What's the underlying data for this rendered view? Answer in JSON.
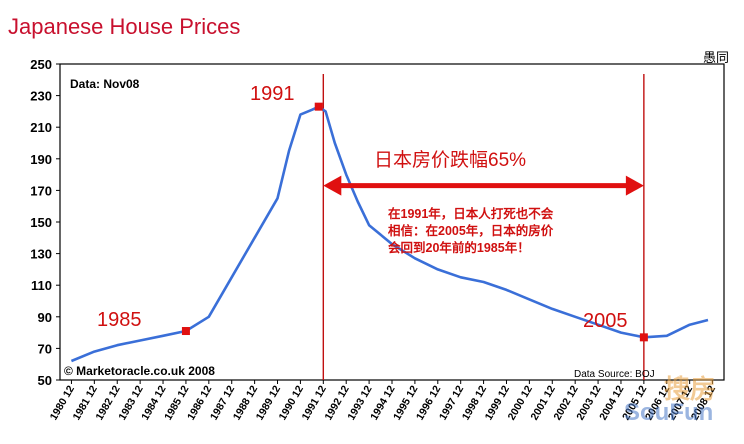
{
  "chart_data": {
    "type": "line",
    "title": "Japanese House Prices",
    "top_right_label": "愚同",
    "ylim": [
      50,
      250
    ],
    "yticks": [
      50,
      70,
      90,
      110,
      130,
      150,
      170,
      190,
      210,
      230,
      250
    ],
    "categories": [
      "1980 12",
      "1981 12",
      "1982 12",
      "1983 12",
      "1984 12",
      "1985 12",
      "1986 12",
      "1987 12",
      "1988 12",
      "1989 12",
      "1990 12",
      "1991 12",
      "1992 12",
      "1993 12",
      "1994 12",
      "1995 12",
      "1996 12",
      "1997 12",
      "1998 12",
      "1999 12",
      "2000 12",
      "2001 12",
      "2002 12",
      "2003 12",
      "2004 12",
      "2005 12",
      "2006 12",
      "2007 12",
      "2008 12"
    ],
    "series": [
      {
        "color": "#3a6fd8",
        "points": [
          [
            1980.5,
            62
          ],
          [
            1981.5,
            68
          ],
          [
            1982.5,
            72
          ],
          [
            1983.5,
            75
          ],
          [
            1984.5,
            78
          ],
          [
            1985.5,
            81
          ],
          [
            1986.5,
            90
          ],
          [
            1987.5,
            115
          ],
          [
            1988.5,
            140
          ],
          [
            1989.5,
            165
          ],
          [
            1990.0,
            195
          ],
          [
            1990.5,
            218
          ],
          [
            1991.0,
            221
          ],
          [
            1991.3,
            223
          ],
          [
            1991.6,
            220
          ],
          [
            1992.0,
            200
          ],
          [
            1992.5,
            180
          ],
          [
            1993.0,
            163
          ],
          [
            1993.5,
            148
          ],
          [
            1994.5,
            136
          ],
          [
            1995.5,
            127
          ],
          [
            1996.5,
            120
          ],
          [
            1997.5,
            115
          ],
          [
            1998.5,
            112
          ],
          [
            1999.5,
            107
          ],
          [
            2000.5,
            101
          ],
          [
            2001.5,
            95
          ],
          [
            2002.5,
            90
          ],
          [
            2003.5,
            85
          ],
          [
            2004.5,
            80
          ],
          [
            2005.5,
            77
          ],
          [
            2006.5,
            78
          ],
          [
            2007.5,
            85
          ],
          [
            2008.3,
            88
          ]
        ]
      }
    ],
    "data_note": "Data: Nov08",
    "copyright": "© Marketoracle.co.uk 2008",
    "source": "Data Source: BOJ",
    "annotations": {
      "label_1985": "1985",
      "label_1991": "1991",
      "label_2005": "2005",
      "arrow_text": "日本房价跌幅65%",
      "note_lines": [
        "在1991年，日本人打死也不会",
        "相信：在2005年，日本的房价",
        "会回到20年前的1985年！"
      ],
      "marker_color": "#e01010",
      "line_color": "#c01010"
    },
    "markers": [
      {
        "x": 1985.5,
        "y": 81
      },
      {
        "x": 1991.3,
        "y": 223
      },
      {
        "x": 2005.5,
        "y": 77
      }
    ],
    "vlines": [
      1991.5,
      2005.5
    ],
    "arrow": {
      "x_from": 1991.5,
      "x_to": 2005.5,
      "y": 173
    },
    "grid": false
  },
  "watermark": {
    "line1": "搜房",
    "line2": "SouFun"
  }
}
